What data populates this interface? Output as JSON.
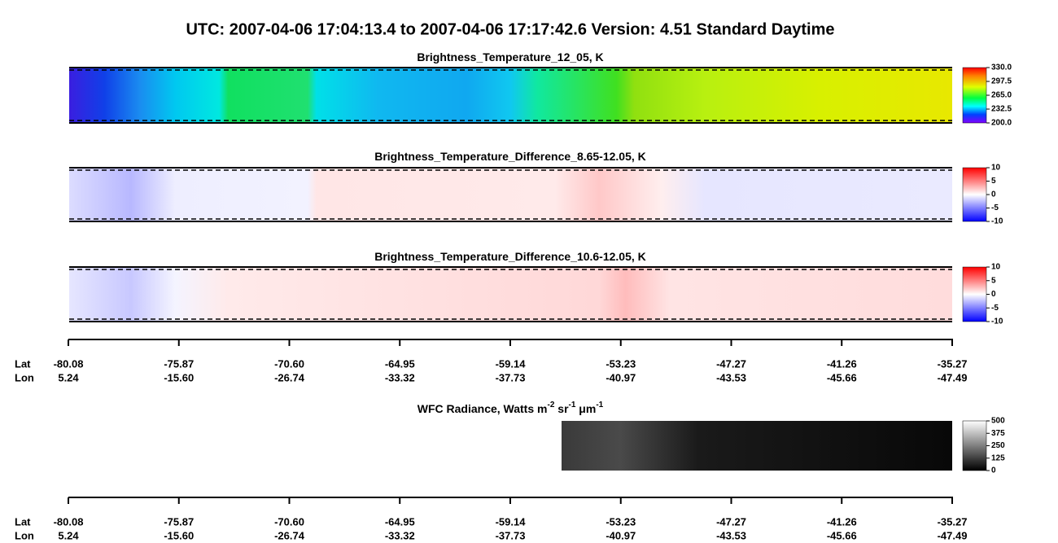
{
  "title": "UTC:  2007-04-06   17:04:13.4  to  2007-04-06   17:17:42.6    Version: 4.51  Standard Daytime",
  "panels": [
    {
      "title_parts": [
        "Brightness_Temperature_12_05, K"
      ],
      "colorbar": [
        "330.0",
        "297.5",
        "265.0",
        "232.5",
        "200.0"
      ]
    },
    {
      "title_parts": [
        "Brightness_Temperature_Difference_8.65-12.05, K"
      ],
      "colorbar": [
        "10",
        "5",
        "0",
        "-5",
        "-10"
      ]
    },
    {
      "title_parts": [
        "Brightness_Temperature_Difference_10.6-12.05, K"
      ],
      "colorbar": [
        "10",
        "5",
        "0",
        "-5",
        "-10"
      ]
    },
    {
      "title_parts": [
        "WFC Radiance, Watts m",
        "-2",
        " sr",
        "-1",
        " μm",
        "-1"
      ],
      "colorbar": [
        "500",
        "375",
        "250",
        "125",
        "0"
      ]
    }
  ],
  "axes": [
    {
      "row_labels": [
        "Lat",
        "Lon"
      ],
      "lat": [
        "-80.08",
        "-75.87",
        "-70.60",
        "-64.95",
        "-59.14",
        "-53.23",
        "-47.27",
        "-41.26",
        "-35.27"
      ],
      "lon": [
        "5.24",
        "-15.60",
        "-26.74",
        "-33.32",
        "-37.73",
        "-40.97",
        "-43.53",
        "-45.66",
        "-47.49"
      ]
    },
    {
      "row_labels": [
        "Lat",
        "Lon"
      ],
      "lat": [
        "-80.08",
        "-75.87",
        "-70.60",
        "-64.95",
        "-59.14",
        "-53.23",
        "-47.27",
        "-41.26",
        "-35.27"
      ],
      "lon": [
        "5.24",
        "-15.60",
        "-26.74",
        "-33.32",
        "-37.73",
        "-40.97",
        "-43.53",
        "-45.66",
        "-47.49"
      ]
    }
  ]
}
